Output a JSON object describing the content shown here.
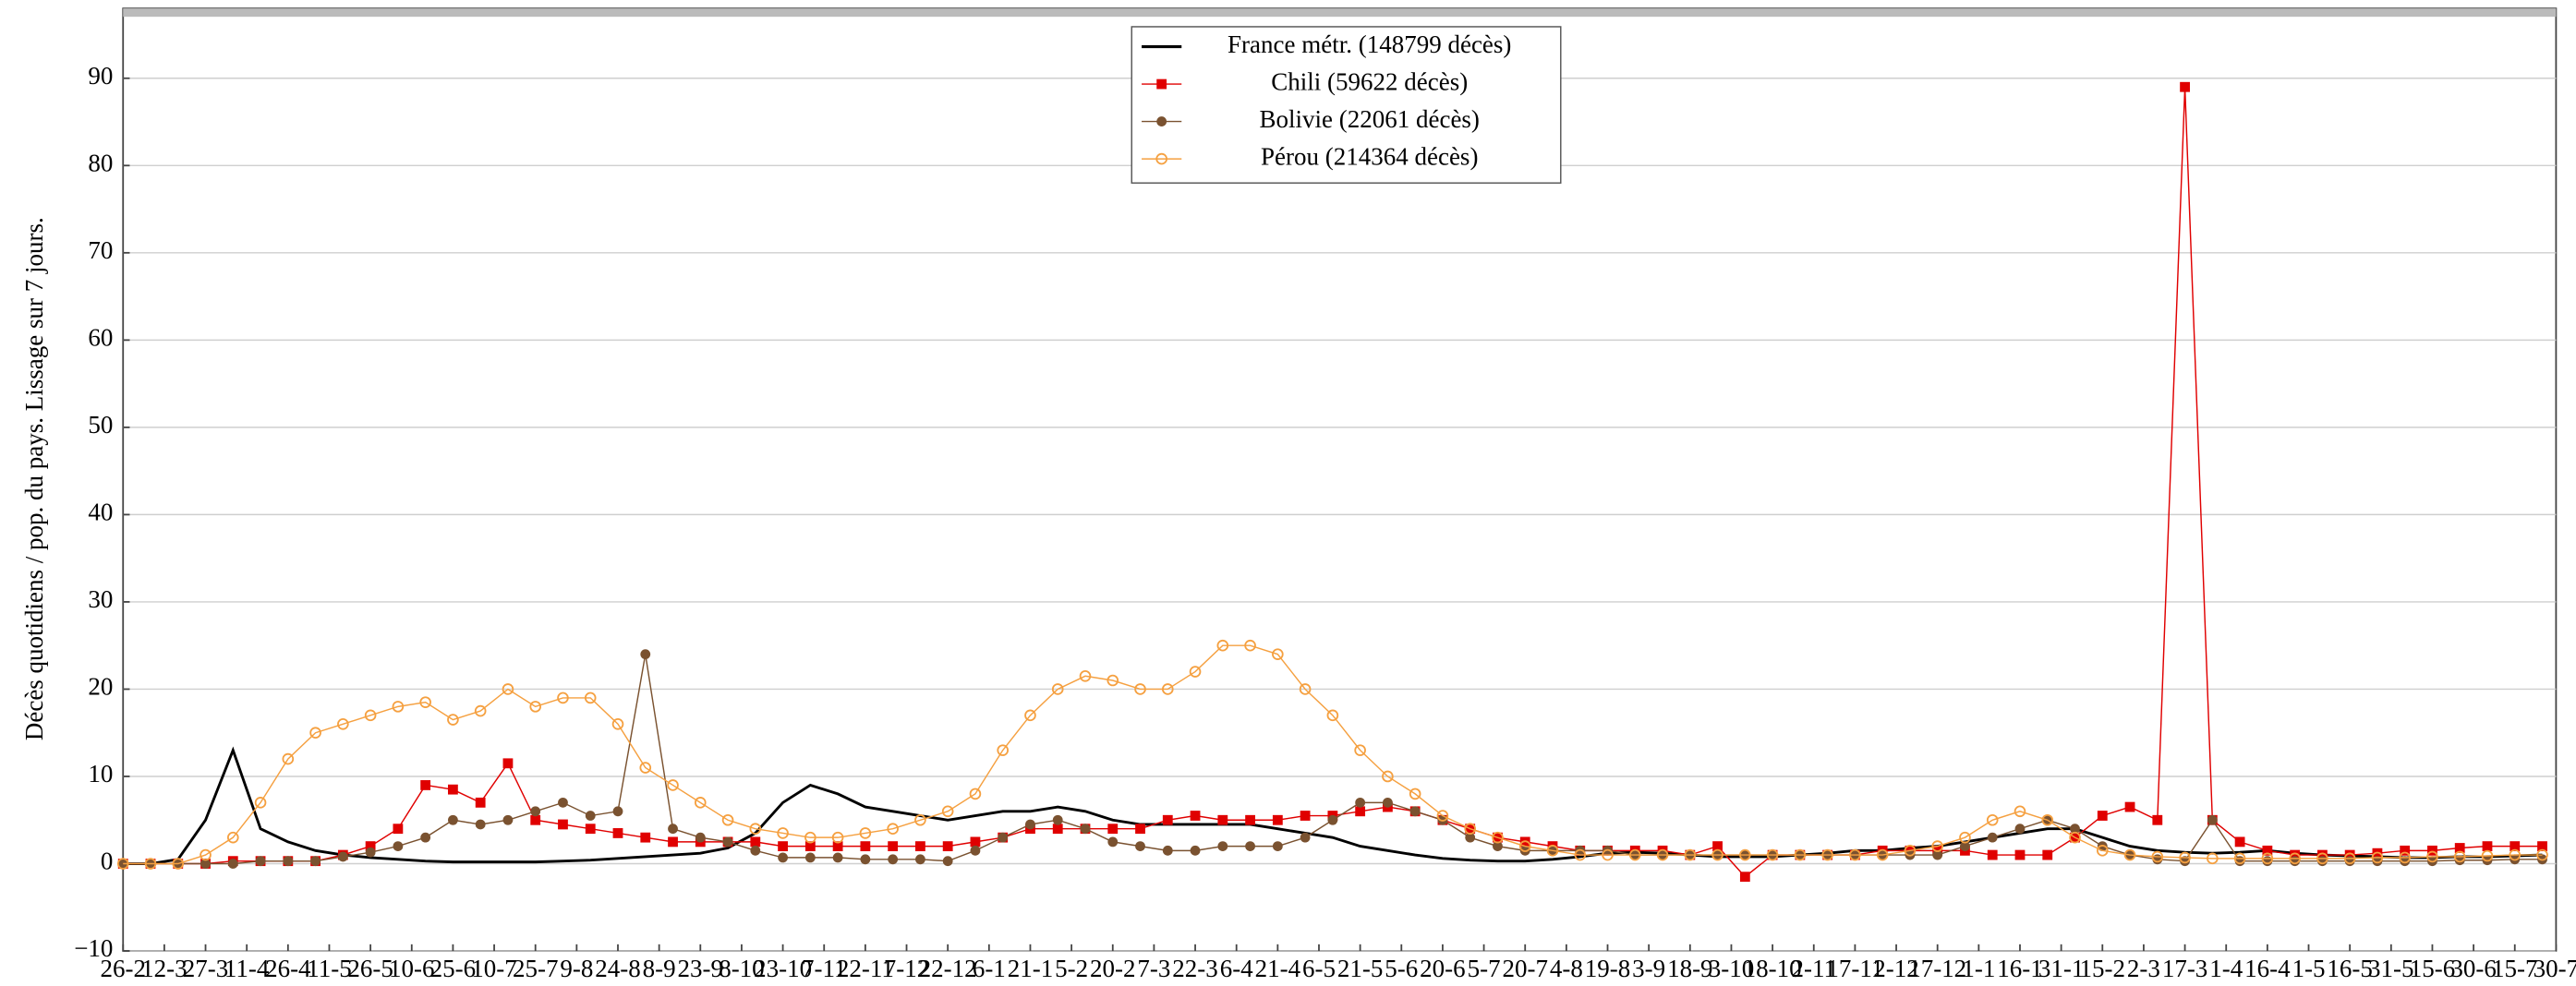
{
  "chart_data": {
    "type": "line",
    "y_label": "Décès quotidiens / pop. du pays. Lissage sur 7 jours.",
    "x": [
      0,
      10,
      20,
      30,
      40,
      50,
      60,
      70,
      80,
      90,
      100,
      110,
      120,
      130,
      140,
      150,
      160,
      170,
      180,
      190,
      200,
      210,
      220,
      230,
      240,
      250,
      260,
      270,
      280,
      290,
      300,
      310,
      320,
      330,
      340,
      350,
      360,
      370,
      380,
      390,
      400,
      410,
      420,
      430,
      440,
      450,
      460,
      470,
      480,
      490,
      500,
      510,
      520,
      530,
      540,
      550,
      560,
      570,
      580,
      590,
      600,
      610,
      620,
      630,
      640,
      650,
      660,
      670,
      680,
      690,
      700,
      710,
      720,
      730,
      740,
      750,
      760,
      770,
      780,
      790,
      800,
      810,
      820,
      830,
      840,
      850,
      860,
      870,
      880
    ],
    "xlim": [
      0,
      885
    ],
    "xticks": [
      {
        "value": 0,
        "label": "26-2"
      },
      {
        "value": 15,
        "label": "12-3"
      },
      {
        "value": 30,
        "label": "27-3"
      },
      {
        "value": 45,
        "label": "11-4"
      },
      {
        "value": 60,
        "label": "26-4"
      },
      {
        "value": 75,
        "label": "11-5"
      },
      {
        "value": 90,
        "label": "26-5"
      },
      {
        "value": 105,
        "label": "10-6"
      },
      {
        "value": 120,
        "label": "25-6"
      },
      {
        "value": 135,
        "label": "10-7"
      },
      {
        "value": 150,
        "label": "25-7"
      },
      {
        "value": 165,
        "label": "9-8"
      },
      {
        "value": 180,
        "label": "24-8"
      },
      {
        "value": 195,
        "label": "8-9"
      },
      {
        "value": 210,
        "label": "23-9"
      },
      {
        "value": 225,
        "label": "8-10"
      },
      {
        "value": 240,
        "label": "23-10"
      },
      {
        "value": 255,
        "label": "7-11"
      },
      {
        "value": 270,
        "label": "22-11"
      },
      {
        "value": 285,
        "label": "7-12"
      },
      {
        "value": 300,
        "label": "22-12"
      },
      {
        "value": 315,
        "label": "6-1"
      },
      {
        "value": 330,
        "label": "21-1"
      },
      {
        "value": 345,
        "label": "5-2"
      },
      {
        "value": 360,
        "label": "20-2"
      },
      {
        "value": 375,
        "label": "7-3"
      },
      {
        "value": 390,
        "label": "22-3"
      },
      {
        "value": 405,
        "label": "6-4"
      },
      {
        "value": 420,
        "label": "21-4"
      },
      {
        "value": 435,
        "label": "6-5"
      },
      {
        "value": 450,
        "label": "21-5"
      },
      {
        "value": 465,
        "label": "5-6"
      },
      {
        "value": 480,
        "label": "20-6"
      },
      {
        "value": 495,
        "label": "5-7"
      },
      {
        "value": 510,
        "label": "20-7"
      },
      {
        "value": 525,
        "label": "4-8"
      },
      {
        "value": 540,
        "label": "19-8"
      },
      {
        "value": 555,
        "label": "3-9"
      },
      {
        "value": 570,
        "label": "18-9"
      },
      {
        "value": 585,
        "label": "3-10"
      },
      {
        "value": 600,
        "label": "18-10"
      },
      {
        "value": 615,
        "label": "2-11"
      },
      {
        "value": 630,
        "label": "17-11"
      },
      {
        "value": 645,
        "label": "2-12"
      },
      {
        "value": 660,
        "label": "17-12"
      },
      {
        "value": 675,
        "label": "1-1"
      },
      {
        "value": 690,
        "label": "16-1"
      },
      {
        "value": 705,
        "label": "31-1"
      },
      {
        "value": 720,
        "label": "15-2"
      },
      {
        "value": 735,
        "label": "2-3"
      },
      {
        "value": 750,
        "label": "17-3"
      },
      {
        "value": 765,
        "label": "1-4"
      },
      {
        "value": 780,
        "label": "16-4"
      },
      {
        "value": 795,
        "label": "1-5"
      },
      {
        "value": 810,
        "label": "16-5"
      },
      {
        "value": 825,
        "label": "31-5"
      },
      {
        "value": 840,
        "label": "15-6"
      },
      {
        "value": 855,
        "label": "30-6"
      },
      {
        "value": 870,
        "label": "15-7"
      },
      {
        "value": 885,
        "label": "30-7"
      }
    ],
    "ylim": [
      -10,
      98
    ],
    "yticks": [
      {
        "value": -10,
        "label": "−10"
      },
      0,
      10,
      20,
      30,
      40,
      50,
      60,
      70,
      80,
      90
    ],
    "grid": true,
    "legend": "top-center",
    "series": [
      {
        "name": "France métr. (148799 décès)",
        "color": "#000000",
        "marker": "none",
        "values": [
          0,
          0,
          0.5,
          5,
          13,
          4,
          2.5,
          1.5,
          1,
          0.7,
          0.5,
          0.3,
          0.2,
          0.2,
          0.2,
          0.2,
          0.3,
          0.4,
          0.6,
          0.8,
          1,
          1.2,
          1.8,
          3.5,
          7,
          9,
          8,
          6.5,
          6,
          5.5,
          5,
          5.5,
          6,
          6,
          6.5,
          6,
          5,
          4.5,
          4.5,
          4.5,
          4.5,
          4.5,
          4,
          3.5,
          3,
          2,
          1.5,
          1,
          0.6,
          0.4,
          0.3,
          0.3,
          0.5,
          0.8,
          1.2,
          1.3,
          1.2,
          1,
          0.8,
          0.8,
          0.8,
          1,
          1.2,
          1.5,
          1.5,
          1.8,
          2,
          2.5,
          3,
          3.5,
          4,
          4,
          3,
          2,
          1.5,
          1.3,
          1.2,
          1.3,
          1.5,
          1.2,
          1,
          0.9,
          0.8,
          0.7,
          0.7,
          0.8,
          0.8,
          0.9,
          1
        ]
      },
      {
        "name": "Chili (59622 décès)",
        "color": "#e00000",
        "marker": "square",
        "values": [
          0,
          0,
          0,
          0,
          0.3,
          0.3,
          0.3,
          0.3,
          1,
          2,
          4,
          9,
          8.5,
          7,
          11.5,
          5,
          4.5,
          4,
          3.5,
          3,
          2.5,
          2.5,
          2.5,
          2.5,
          2,
          2,
          2,
          2,
          2,
          2,
          2,
          2.5,
          3,
          4,
          4,
          4,
          4,
          4,
          5,
          5.5,
          5,
          5,
          5,
          5.5,
          5.5,
          6,
          6.5,
          6,
          5,
          4,
          3,
          2.5,
          2,
          1.5,
          1.5,
          1.5,
          1.5,
          1,
          2,
          -1.5,
          1,
          1,
          1,
          1,
          1.5,
          1.5,
          1.5,
          1.5,
          1,
          1,
          1,
          3,
          5.5,
          6.5,
          5,
          89,
          5,
          2.5,
          1.5,
          1,
          1,
          1,
          1.2,
          1.5,
          1.5,
          1.8,
          2,
          2,
          2
        ]
      },
      {
        "name": "Bolivie (22061 décès)",
        "color": "#7a5230",
        "marker": "circle",
        "values": [
          0,
          0,
          0,
          0,
          0,
          0.3,
          0.3,
          0.3,
          0.8,
          1.3,
          2,
          3,
          5,
          4.5,
          5,
          6,
          7,
          5.5,
          6,
          24,
          4,
          3,
          2.5,
          1.5,
          0.7,
          0.7,
          0.7,
          0.5,
          0.5,
          0.5,
          0.3,
          1.5,
          3,
          4.5,
          5,
          4,
          2.5,
          2,
          1.5,
          1.5,
          2,
          2,
          2,
          3,
          5,
          7,
          7,
          6,
          5,
          3,
          2,
          1.5,
          1.5,
          1.5,
          1.5,
          1,
          1,
          1,
          1,
          1,
          1,
          1,
          1,
          1,
          1,
          1,
          1,
          2,
          3,
          4,
          5,
          4,
          2,
          1,
          0.5,
          0.3,
          5,
          0.3,
          0.3,
          0.3,
          0.3,
          0.3,
          0.3,
          0.3,
          0.3,
          0.4,
          0.4,
          0.5,
          0.5
        ]
      },
      {
        "name": "Pérou (214364 décès)",
        "color": "#f5a040",
        "marker": "open-circle",
        "values": [
          0,
          0,
          0,
          1,
          3,
          7,
          12,
          15,
          16,
          17,
          18,
          18.5,
          16.5,
          17.5,
          20,
          18,
          19,
          19,
          16,
          11,
          9,
          7,
          5,
          4,
          3.5,
          3,
          3,
          3.5,
          4,
          5,
          6,
          8,
          13,
          17,
          20,
          21.5,
          21,
          20,
          20,
          22,
          25,
          25,
          24,
          20,
          17,
          13,
          10,
          8,
          5.5,
          4,
          3,
          2,
          1.5,
          1,
          1,
          1,
          1,
          1,
          1,
          1,
          1,
          1,
          1,
          1,
          1,
          1.5,
          2,
          3,
          5,
          6,
          5,
          3,
          1.5,
          1,
          0.8,
          0.7,
          0.6,
          0.6,
          0.6,
          0.6,
          0.6,
          0.6,
          0.7,
          0.7,
          0.8,
          0.8,
          0.9,
          1,
          1
        ]
      }
    ]
  }
}
